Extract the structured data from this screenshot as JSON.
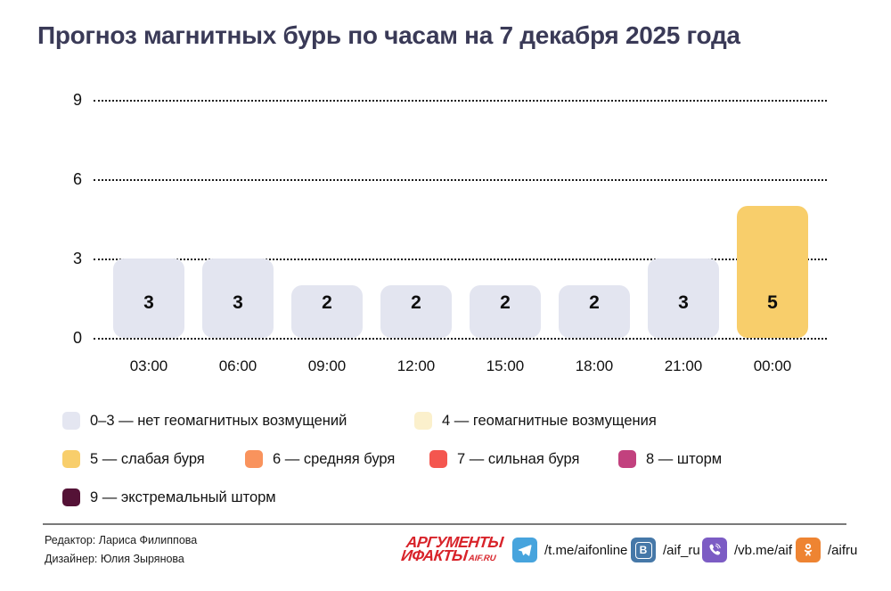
{
  "title": "Прогноз магнитных бурь по часам на 7 декабря 2025 года",
  "chart_data": {
    "type": "bar",
    "categories": [
      "03:00",
      "06:00",
      "09:00",
      "12:00",
      "15:00",
      "18:00",
      "21:00",
      "00:00"
    ],
    "values": [
      3,
      3,
      2,
      2,
      2,
      2,
      3,
      5
    ],
    "yticks": [
      0,
      3,
      6,
      9
    ],
    "ylim": [
      0,
      9
    ],
    "grid": "horizontal-dotted",
    "bar_colors": [
      "#e3e5f0",
      "#e3e5f0",
      "#e3e5f0",
      "#e3e5f0",
      "#e3e5f0",
      "#e3e5f0",
      "#e3e5f0",
      "#f8ce6b"
    ],
    "value_label_color": "#0d0d0d",
    "legend_position": "bottom"
  },
  "legend": {
    "rows": [
      [
        {
          "color": "#e4e6f1",
          "label": "0–3 — нет геомагнитных возмущений"
        },
        {
          "color": "#fbf0cc",
          "label": "4 — геомагнитные возмущения"
        }
      ],
      [
        {
          "color": "#f8ce6b",
          "label": "5 — слабая буря"
        },
        {
          "color": "#f9935d",
          "label": "6 — средняя буря"
        },
        {
          "color": "#f4564f",
          "label": "7 — сильная буря"
        },
        {
          "color": "#c2417e",
          "label": "8 — шторм"
        }
      ],
      [
        {
          "color": "#541236",
          "label": "9 — экстремальный шторм"
        }
      ]
    ]
  },
  "footer": {
    "credits": [
      "Редактор: Лариса Филиппова",
      "Дизайнер: Юлия Зырянова"
    ],
    "logo": {
      "line1": "АРГУМЕНТЫ",
      "line2": "ИФАКТЫ",
      "suffix": "AIF.RU"
    },
    "socials": [
      {
        "icon": "telegram",
        "color": "#47a4dd",
        "label": "/t.me/aifonline"
      },
      {
        "icon": "vk",
        "color": "#4678a8",
        "label": "/aif_ru"
      },
      {
        "icon": "viber",
        "color": "#7c5cc4",
        "label": "/vb.me/aif"
      },
      {
        "icon": "ok",
        "color": "#ee8432",
        "label": "/aifru"
      }
    ]
  }
}
